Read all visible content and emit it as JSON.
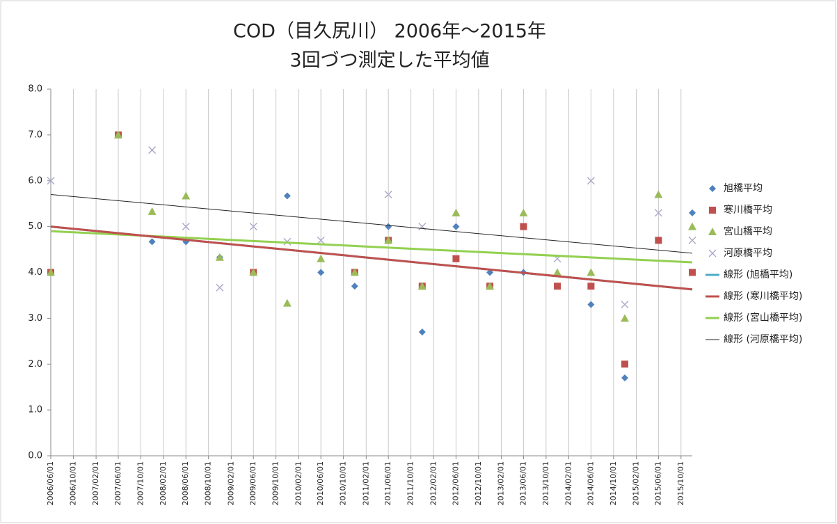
{
  "chart_data": {
    "type": "scatter",
    "title": "COD（目久尻川） 2006年～2015年",
    "subtitle": "3回づつ測定した平均値",
    "x": [
      "2006/06/01",
      "2007/06/01",
      "2007/12/01",
      "2008/06/01",
      "2008/12/01",
      "2009/06/01",
      "2009/12/01",
      "2010/06/01",
      "2010/12/01",
      "2011/06/01",
      "2011/12/01",
      "2012/06/01",
      "2012/12/01",
      "2013/06/01",
      "2013/12/01",
      "2014/06/01",
      "2014/12/01",
      "2015/06/01",
      "2015/12/01"
    ],
    "series": [
      {
        "name": "旭橋平均",
        "color": "#4f81bd",
        "marker": "diamond",
        "values": [
          4.0,
          7.0,
          4.67,
          4.67,
          4.33,
          4.0,
          5.67,
          4.0,
          3.7,
          5.0,
          2.7,
          5.0,
          4.0,
          4.0,
          null,
          3.3,
          1.7,
          null,
          5.3
        ]
      },
      {
        "name": "寒川橋平均",
        "color": "#c0504d",
        "marker": "square",
        "values": [
          4.0,
          7.0,
          null,
          null,
          null,
          4.0,
          null,
          null,
          4.0,
          4.7,
          3.7,
          4.3,
          3.7,
          5.0,
          3.7,
          3.7,
          2.0,
          4.7,
          4.0
        ]
      },
      {
        "name": "宮山橋平均",
        "color": "#9bbb59",
        "marker": "triangle",
        "values": [
          4.0,
          7.0,
          5.33,
          5.67,
          4.33,
          4.0,
          3.33,
          4.3,
          4.0,
          4.7,
          3.7,
          5.3,
          3.7,
          5.3,
          4.0,
          4.0,
          3.0,
          5.7,
          5.0
        ]
      },
      {
        "name": "河原橋平均",
        "color": "#a6a6c8",
        "marker": "cross",
        "values": [
          6.0,
          null,
          6.67,
          5.0,
          3.67,
          5.0,
          4.67,
          4.7,
          null,
          5.7,
          5.0,
          null,
          null,
          null,
          4.3,
          6.0,
          3.3,
          5.3,
          4.7
        ]
      }
    ],
    "trendlines": [
      {
        "name": "線形 (旭橋平均)",
        "color": "#4bacc6",
        "width": 3,
        "x": [
          "2006/06/01",
          "2015/12/01"
        ],
        "values": [
          5.0,
          3.63
        ]
      },
      {
        "name": "線形 (寒川橋平均)",
        "color": "#c0504d",
        "width": 3,
        "x": [
          "2006/06/01",
          "2015/12/01"
        ],
        "values": [
          5.0,
          3.63
        ]
      },
      {
        "name": "線形 (宮山橋平均)",
        "color": "#92d050",
        "width": 3,
        "x": [
          "2006/06/01",
          "2015/12/01"
        ],
        "values": [
          4.9,
          4.22
        ]
      },
      {
        "name": "線形 (河原橋平均)",
        "color": "#222222",
        "width": 1,
        "x": [
          "2006/06/01",
          "2015/12/01"
        ],
        "values": [
          5.7,
          4.42
        ]
      }
    ],
    "xlim": [
      "2006/06/01",
      "2015/12/01"
    ],
    "xticks": [
      "2006/06/01",
      "2006/10/01",
      "2007/02/01",
      "2007/06/01",
      "2007/10/01",
      "2008/02/01",
      "2008/06/01",
      "2008/10/01",
      "2009/02/01",
      "2009/06/01",
      "2009/10/01",
      "2010/02/01",
      "2010/06/01",
      "2010/10/01",
      "2011/02/01",
      "2011/06/01",
      "2011/10/01",
      "2012/02/01",
      "2012/06/01",
      "2012/10/01",
      "2013/02/01",
      "2013/06/01",
      "2013/10/01",
      "2014/02/01",
      "2014/06/01",
      "2014/10/01",
      "2015/02/01",
      "2015/06/01",
      "2015/10/01"
    ],
    "ylim": [
      0,
      8
    ],
    "yticks": [
      {
        "value": 0,
        "label": "0.0"
      },
      {
        "value": 1,
        "label": "1.0"
      },
      {
        "value": 2,
        "label": "2.0"
      },
      {
        "value": 3,
        "label": "3.0"
      },
      {
        "value": 4,
        "label": "4.0"
      },
      {
        "value": 5,
        "label": "5.0"
      },
      {
        "value": 6,
        "label": "6.0"
      },
      {
        "value": 7,
        "label": "7.0"
      },
      {
        "value": 8,
        "label": "8.0"
      }
    ],
    "grid": "x",
    "legend": "right"
  }
}
